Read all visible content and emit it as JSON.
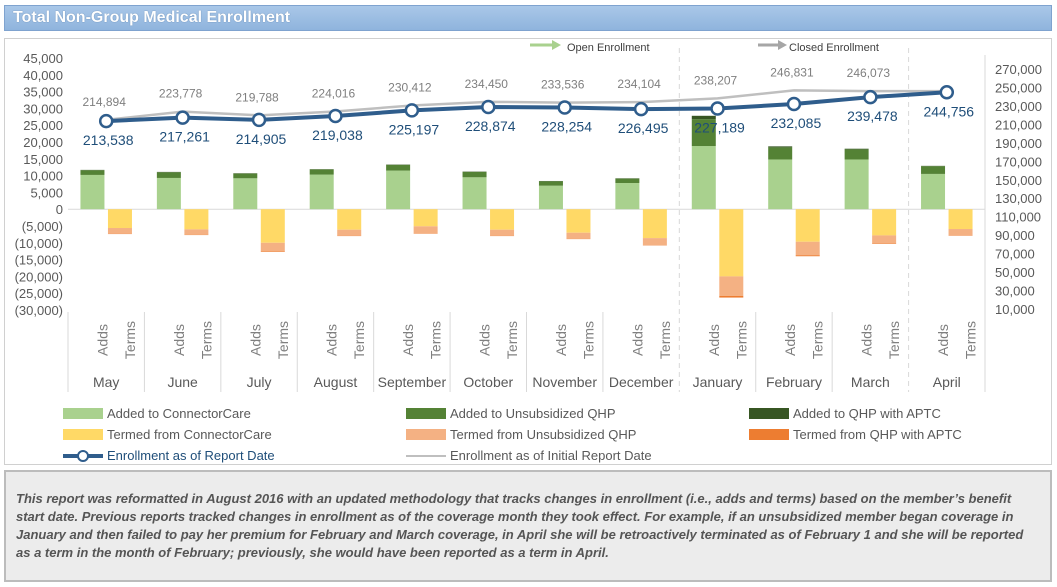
{
  "title": "Total Non-Group Medical Enrollment",
  "colors": {
    "cc_add": "#a9d18e",
    "unsub_add": "#548235",
    "aptc_add": "#375623",
    "cc_term": "#ffd966",
    "unsub_term": "#f4b183",
    "aptc_term": "#ed7d31",
    "enroll_line": "#2f5d8c",
    "initial_line": "#bfbfbf",
    "title_text": "#ffffff"
  },
  "chart_data": {
    "type": "bar",
    "months": [
      "May",
      "June",
      "July",
      "August",
      "September",
      "October",
      "November",
      "December",
      "January",
      "February",
      "March",
      "April"
    ],
    "bar_labels": [
      "Adds",
      "Terms"
    ],
    "left_axis": {
      "ticks": [
        "45,000",
        "40,000",
        "35,000",
        "30,000",
        "25,000",
        "20,000",
        "15,000",
        "10,000",
        "5,000",
        "0",
        "(5,000)",
        "(10,000)",
        "(15,000)",
        "(20,000)",
        "(25,000)",
        "(30,000)"
      ],
      "min": -30000,
      "max": 45000
    },
    "right_axis": {
      "ticks": [
        "270,000",
        "250,000",
        "230,000",
        "210,000",
        "190,000",
        "170,000",
        "150,000",
        "130,000",
        "110,000",
        "90,000",
        "70,000",
        "50,000",
        "30,000",
        "10,000"
      ],
      "min": 10000,
      "max": 270000
    },
    "series": [
      {
        "name": "Added to ConnectorCare",
        "values": [
          10200,
          9300,
          9200,
          10300,
          11500,
          9500,
          7000,
          7800,
          18800,
          14800,
          14800,
          10500
        ]
      },
      {
        "name": "Added to Unsubsidized QHP",
        "values": [
          1400,
          1700,
          1400,
          1500,
          1700,
          1600,
          1300,
          1300,
          8000,
          3600,
          3000,
          2300
        ]
      },
      {
        "name": "Added to QHP with APTC",
        "values": [
          100,
          100,
          100,
          100,
          100,
          100,
          100,
          100,
          1000,
          300,
          200,
          100
        ]
      },
      {
        "name": "Termed from ConnectorCare",
        "values": [
          -5600,
          -6000,
          -10000,
          -6100,
          -5100,
          -6100,
          -7000,
          -8600,
          -20000,
          -9700,
          -7800,
          -5900
        ]
      },
      {
        "name": "Termed from Unsubsidized QHP",
        "values": [
          -1700,
          -1600,
          -2500,
          -1800,
          -2100,
          -1800,
          -1800,
          -2100,
          -5800,
          -4000,
          -2300,
          -1900
        ]
      },
      {
        "name": "Termed from QHP with APTC",
        "values": [
          -100,
          -100,
          -200,
          -100,
          -100,
          -100,
          -100,
          -100,
          -500,
          -300,
          -200,
          -100
        ]
      }
    ],
    "enrollment_as_of_report_date": {
      "name": "Enrollment as of Report Date",
      "values": [
        213538,
        217261,
        214905,
        219038,
        225197,
        228874,
        228254,
        226495,
        227189,
        232085,
        239478,
        244756
      ],
      "labels": [
        "213,538",
        "217,261",
        "214,905",
        "219,038",
        "225,197",
        "228,874",
        "228,254",
        "226,495",
        "227,189",
        "232,085",
        "239,478",
        "244,756"
      ]
    },
    "enrollment_as_of_initial_report_date": {
      "name": "Enrollment as of Initial Report Date",
      "values": [
        214894,
        223778,
        219788,
        224016,
        230412,
        234450,
        233536,
        234104,
        238207,
        246831,
        246073,
        null
      ],
      "labels": [
        "214,894",
        "223,778",
        "219,788",
        "224,016",
        "230,412",
        "234,450",
        "233,536",
        "234,104",
        "238,207",
        "246,831",
        "246,073",
        ""
      ]
    },
    "annotations": {
      "open_enrollment": "Open Enrollment",
      "closed_enrollment": "Closed Enrollment"
    }
  },
  "legend": [
    {
      "label": "Added to ConnectorCare",
      "color": "#a9d18e",
      "kind": "box"
    },
    {
      "label": "Added to Unsubsidized QHP",
      "color": "#548235",
      "kind": "box"
    },
    {
      "label": "Added to QHP with APTC",
      "color": "#375623",
      "kind": "box"
    },
    {
      "label": "Termed from ConnectorCare",
      "color": "#ffd966",
      "kind": "box"
    },
    {
      "label": "Termed from Unsubsidized QHP",
      "color": "#f4b183",
      "kind": "box"
    },
    {
      "label": "Termed from QHP with APTC",
      "color": "#ed7d31",
      "kind": "box"
    },
    {
      "label": "Enrollment as of Report Date",
      "color": "#2f5d8c",
      "kind": "line-marker"
    },
    {
      "label": "Enrollment as of Initial Report Date",
      "color": "#bfbfbf",
      "kind": "line"
    }
  ],
  "note": "This report was reformatted in August 2016 with an updated methodology that tracks changes in enrollment (i.e., adds and terms) based on the member’s benefit start date.  Previous reports tracked changes in enrollment as of the coverage month they took effect.  For example, if an unsubsidized member began coverage in January and then failed to pay her premium for February and March coverage, in April she will be retroactively terminated as of February 1 and she will be reported as a term in the month of February; previously, she would have been reported as a term in April."
}
